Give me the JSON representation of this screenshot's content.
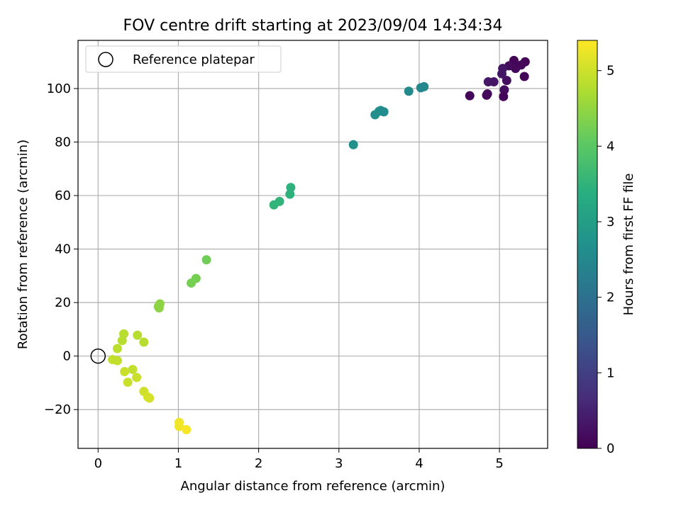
{
  "chart_data": {
    "type": "scatter",
    "title": "FOV centre drift starting at 2023/09/04 14:34:34",
    "xlabel": "Angular distance from reference (arcmin)",
    "ylabel": "Rotation from reference (arcmin)",
    "xlim": [
      -0.25,
      5.6
    ],
    "ylim": [
      -34.5,
      118
    ],
    "xticks": [
      0,
      1,
      2,
      3,
      4,
      5
    ],
    "yticks": [
      -20,
      0,
      20,
      40,
      60,
      80,
      100
    ],
    "ytick_labels": [
      "−20",
      "0",
      "20",
      "40",
      "60",
      "80",
      "100"
    ],
    "grid": true,
    "legend": {
      "position": "top-left",
      "entries": [
        "Reference platepar"
      ]
    },
    "reference_point": {
      "x": 0,
      "y": 0,
      "label": "Reference platepar"
    },
    "colorbar": {
      "label": "Hours from first FF file",
      "colormap": "viridis",
      "range": [
        0,
        5.4
      ],
      "ticks": [
        0,
        1,
        2,
        3,
        4,
        5
      ]
    },
    "points": [
      {
        "x": 5.18,
        "y": 110.5,
        "hours": 0.05
      },
      {
        "x": 5.32,
        "y": 110.0,
        "hours": 0.05
      },
      {
        "x": 5.12,
        "y": 108.5,
        "hours": 0.15
      },
      {
        "x": 5.27,
        "y": 108.8,
        "hours": 0.1
      },
      {
        "x": 5.2,
        "y": 107.5,
        "hours": 0.12
      },
      {
        "x": 5.04,
        "y": 107.5,
        "hours": 0.3
      },
      {
        "x": 5.03,
        "y": 105.5,
        "hours": 0.3
      },
      {
        "x": 5.31,
        "y": 104.5,
        "hours": 0.08
      },
      {
        "x": 4.86,
        "y": 102.5,
        "hours": 0.35
      },
      {
        "x": 4.93,
        "y": 102.5,
        "hours": 0.3
      },
      {
        "x": 5.09,
        "y": 103.0,
        "hours": 0.2
      },
      {
        "x": 5.06,
        "y": 99.5,
        "hours": 0.15
      },
      {
        "x": 4.84,
        "y": 97.5,
        "hours": 0.1
      },
      {
        "x": 4.85,
        "y": 98.0,
        "hours": 0.12
      },
      {
        "x": 4.63,
        "y": 97.3,
        "hours": 0.08
      },
      {
        "x": 5.05,
        "y": 97.0,
        "hours": 0.05
      },
      {
        "x": 4.06,
        "y": 100.7,
        "hours": 2.5
      },
      {
        "x": 4.02,
        "y": 100.3,
        "hours": 2.5
      },
      {
        "x": 3.87,
        "y": 99.0,
        "hours": 2.55
      },
      {
        "x": 3.56,
        "y": 91.3,
        "hours": 2.6
      },
      {
        "x": 3.52,
        "y": 91.8,
        "hours": 2.6
      },
      {
        "x": 3.5,
        "y": 91.5,
        "hours": 2.6
      },
      {
        "x": 3.45,
        "y": 90.2,
        "hours": 2.65
      },
      {
        "x": 3.18,
        "y": 79.0,
        "hours": 2.7
      },
      {
        "x": 2.4,
        "y": 63.0,
        "hours": 3.45
      },
      {
        "x": 2.39,
        "y": 60.5,
        "hours": 3.45
      },
      {
        "x": 2.26,
        "y": 57.8,
        "hours": 3.5
      },
      {
        "x": 2.19,
        "y": 56.5,
        "hours": 3.5
      },
      {
        "x": 1.35,
        "y": 36.0,
        "hours": 4.2
      },
      {
        "x": 1.22,
        "y": 29.0,
        "hours": 4.25
      },
      {
        "x": 1.16,
        "y": 27.3,
        "hours": 4.25
      },
      {
        "x": 0.77,
        "y": 19.5,
        "hours": 4.45
      },
      {
        "x": 0.75,
        "y": 18.5,
        "hours": 4.45
      },
      {
        "x": 0.76,
        "y": 18.0,
        "hours": 4.45
      },
      {
        "x": 0.32,
        "y": 8.3,
        "hours": 4.8
      },
      {
        "x": 0.49,
        "y": 7.8,
        "hours": 4.8
      },
      {
        "x": 0.3,
        "y": 5.8,
        "hours": 4.8
      },
      {
        "x": 0.57,
        "y": 5.2,
        "hours": 4.8
      },
      {
        "x": 0.24,
        "y": 2.8,
        "hours": 4.85
      },
      {
        "x": 0.18,
        "y": -1.3,
        "hours": 4.9
      },
      {
        "x": 0.24,
        "y": -1.7,
        "hours": 4.9
      },
      {
        "x": 0.43,
        "y": -5.0,
        "hours": 4.9
      },
      {
        "x": 0.33,
        "y": -5.8,
        "hours": 4.95
      },
      {
        "x": 0.48,
        "y": -8.0,
        "hours": 4.95
      },
      {
        "x": 0.37,
        "y": -9.8,
        "hours": 4.95
      },
      {
        "x": 0.57,
        "y": -13.2,
        "hours": 5.0
      },
      {
        "x": 0.62,
        "y": -15.3,
        "hours": 5.05
      },
      {
        "x": 0.64,
        "y": -15.7,
        "hours": 5.05
      },
      {
        "x": 1.01,
        "y": -24.8,
        "hours": 5.3
      },
      {
        "x": 1.01,
        "y": -26.3,
        "hours": 5.3
      },
      {
        "x": 1.1,
        "y": -27.5,
        "hours": 5.35
      }
    ]
  }
}
